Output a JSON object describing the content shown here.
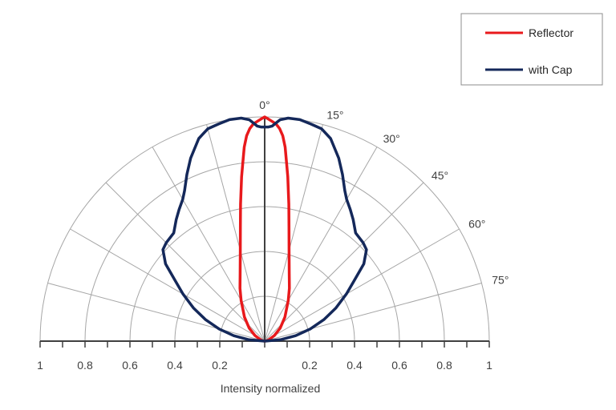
{
  "chart_data": {
    "type": "polar-line",
    "xlabel": "Intensity normalized",
    "radial_range": [
      0,
      1
    ],
    "radial_ticks": [
      0.2,
      0.4,
      0.6,
      0.8,
      1
    ],
    "x_tick_labels": [
      "1",
      "0.8",
      "0.6",
      "0.4",
      "0.2",
      "0.2",
      "0.4",
      "0.6",
      "0.8",
      "1"
    ],
    "angle_range_deg": [
      -90,
      90
    ],
    "angle_labels": [
      {
        "angle": 0,
        "label": "0°"
      },
      {
        "angle": 15,
        "label": "15°"
      },
      {
        "angle": 30,
        "label": "30°"
      },
      {
        "angle": 45,
        "label": "45°"
      },
      {
        "angle": 60,
        "label": "60°"
      },
      {
        "angle": 75,
        "label": "75°"
      }
    ],
    "grid": true,
    "legend_position": "top-right",
    "series": [
      {
        "name": "Reflector",
        "color": "#e8191c",
        "angles": [
          0,
          1,
          2,
          3,
          4,
          5,
          6,
          7,
          8,
          10,
          12,
          15,
          20,
          25,
          30,
          40,
          50,
          60,
          70,
          80,
          90
        ],
        "values": [
          1.0,
          0.99,
          0.98,
          0.97,
          0.95,
          0.92,
          0.87,
          0.8,
          0.74,
          0.62,
          0.52,
          0.42,
          0.32,
          0.26,
          0.21,
          0.14,
          0.09,
          0.05,
          0.02,
          0.01,
          0.0
        ]
      },
      {
        "name": "with Cap",
        "color": "#14285a",
        "angles": [
          0,
          1,
          2,
          3,
          4,
          6,
          9,
          12,
          15,
          18,
          22,
          25,
          28,
          30,
          33,
          36,
          40,
          45,
          48,
          52,
          56,
          60,
          65,
          70,
          75,
          80,
          85,
          90
        ],
        "values": [
          0.955,
          0.955,
          0.96,
          0.975,
          0.99,
          1.0,
          1.0,
          0.99,
          0.98,
          0.95,
          0.88,
          0.82,
          0.76,
          0.73,
          0.7,
          0.67,
          0.63,
          0.62,
          0.61,
          0.56,
          0.48,
          0.42,
          0.35,
          0.28,
          0.21,
          0.14,
          0.07,
          0.0
        ]
      }
    ]
  }
}
